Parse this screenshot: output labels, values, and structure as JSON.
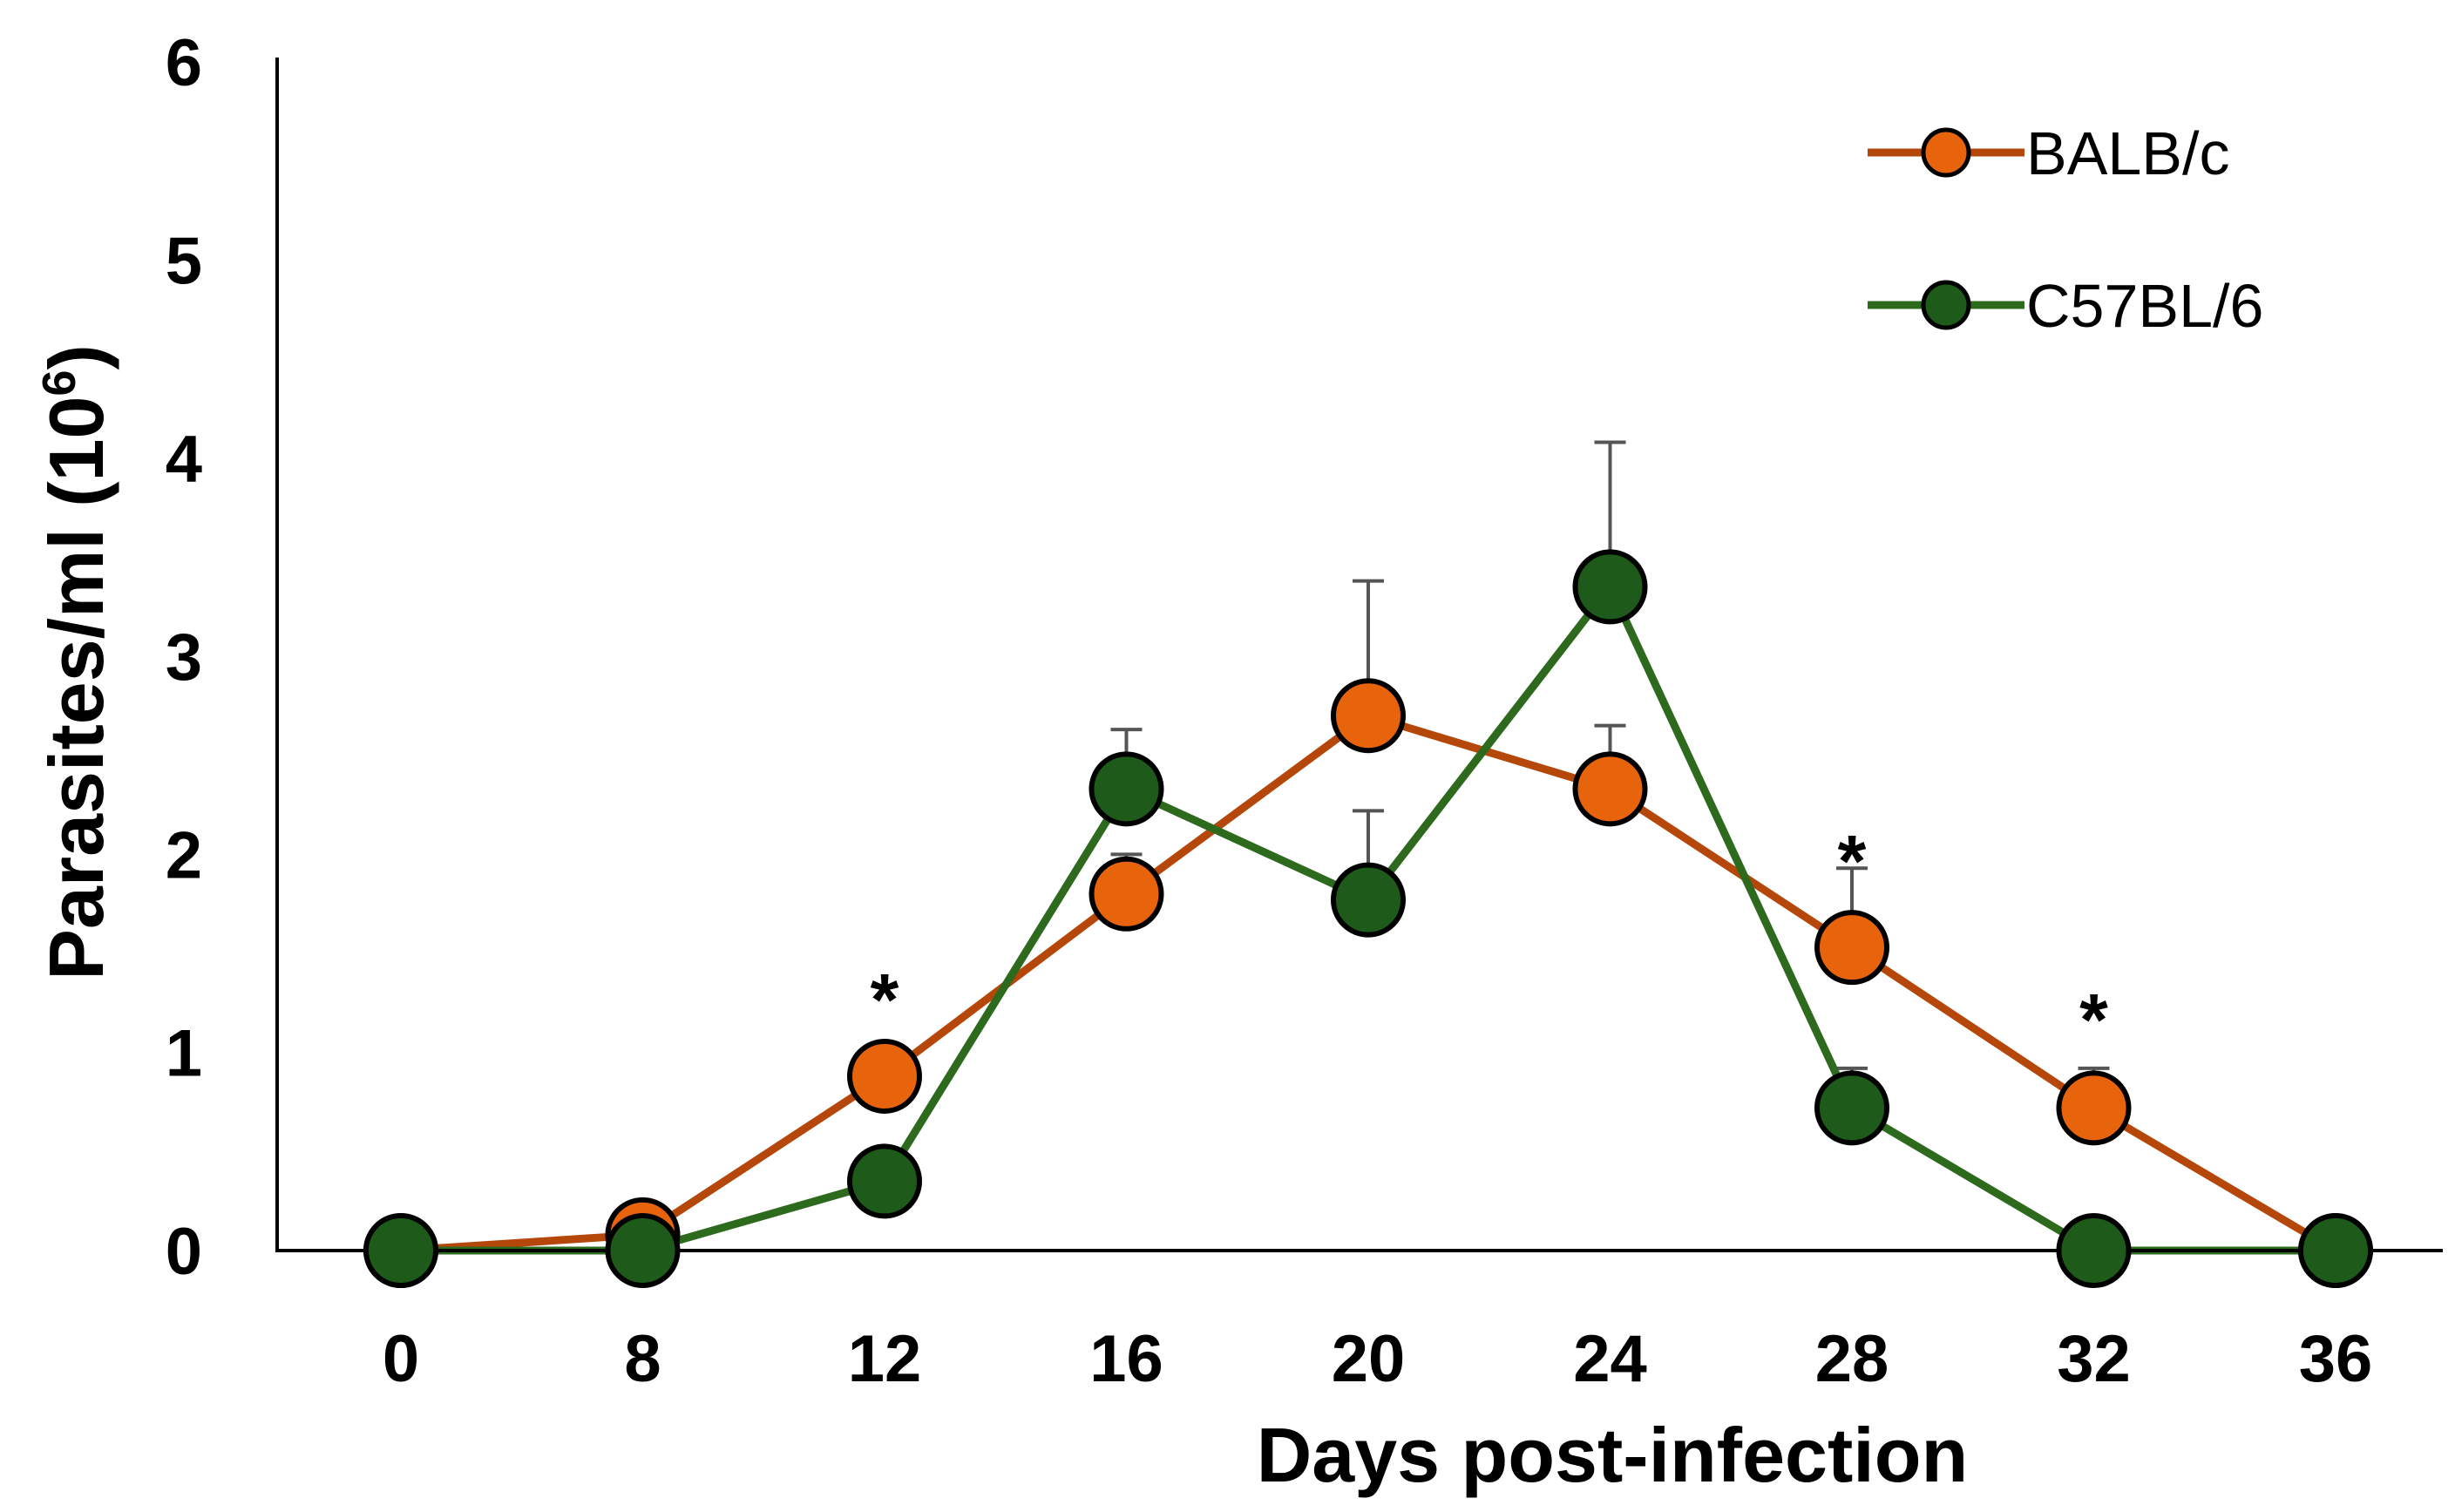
{
  "chart_data": {
    "type": "line",
    "title": "",
    "xlabel": "Days post-infection",
    "ylabel": "Parasites/ml (10",
    "ylabel_exponent": "6",
    "ylabel_close": ")",
    "categories": [
      "0",
      "8",
      "12",
      "16",
      "20",
      "24",
      "28",
      "32",
      "36"
    ],
    "x": [
      0,
      8,
      12,
      16,
      20,
      24,
      28,
      32,
      36
    ],
    "ylim": [
      0,
      6
    ],
    "yticks": [
      0,
      1,
      2,
      3,
      4,
      5,
      6
    ],
    "grid": false,
    "legend_position": "top-right",
    "series": [
      {
        "name": "BALB/c",
        "line_color": "#B5470B",
        "marker_color": "#E8640C",
        "values": [
          0,
          0.08,
          0.88,
          1.8,
          2.7,
          2.33,
          1.53,
          0.72,
          0
        ],
        "error_plus": [
          0,
          0,
          0,
          0.2,
          0.68,
          0.32,
          0.4,
          0.2,
          0
        ]
      },
      {
        "name": "C57BL/6",
        "line_color": "#2D6A1E",
        "marker_color": "#1E5B1A",
        "values": [
          0,
          0,
          0.35,
          2.33,
          1.77,
          3.35,
          0.72,
          0,
          0
        ],
        "error_plus": [
          0,
          0,
          0,
          0.3,
          0.45,
          0.73,
          0.2,
          0,
          0
        ]
      }
    ],
    "annotations": [
      {
        "x": 12,
        "text": "*",
        "y": 1.35
      },
      {
        "x": 28,
        "text": "*",
        "y": 2.05
      },
      {
        "x": 32,
        "text": "*",
        "y": 1.25
      }
    ]
  }
}
